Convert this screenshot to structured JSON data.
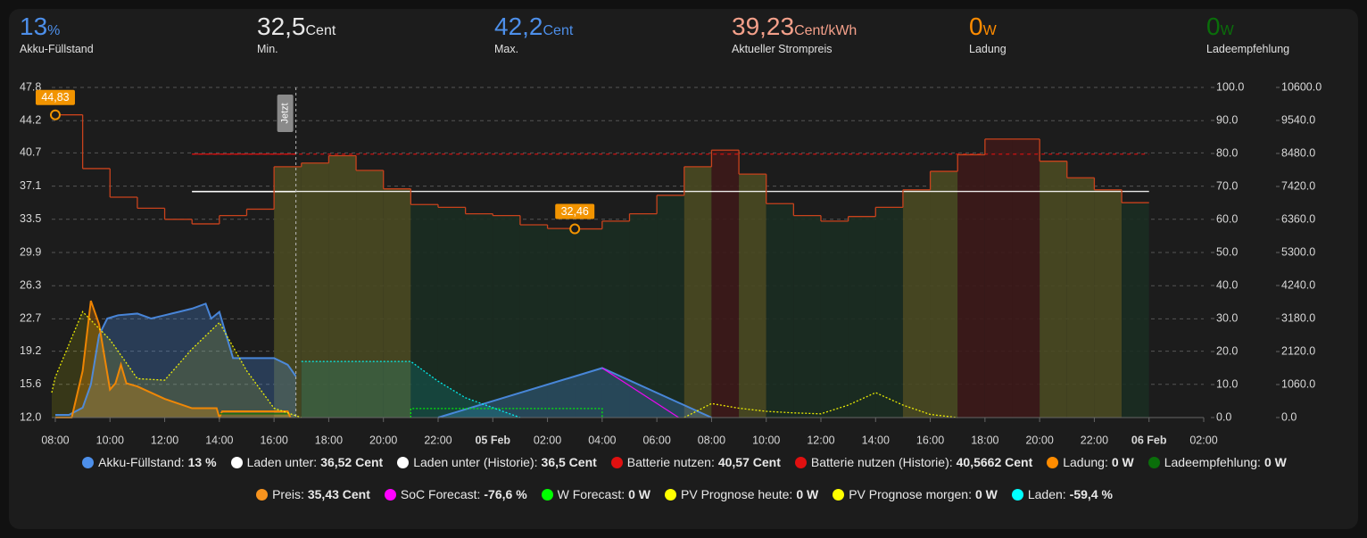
{
  "stats": [
    {
      "value": "13",
      "unit": "%",
      "label": "Akku-Füllstand",
      "color": "#4d8fea"
    },
    {
      "value": "32,5",
      "unit": "Cent",
      "label": "Min.",
      "color": "#e8e8e8"
    },
    {
      "value": "42,2",
      "unit": "Cent",
      "label": "Max.",
      "color": "#4d8fea"
    },
    {
      "value": "39,23",
      "unit": "Cent/kWh",
      "label": "Aktueller Strompreis",
      "color": "#f4a08a"
    },
    {
      "value": "0",
      "unit": "W",
      "label": "Ladung",
      "color": "#ff8c00"
    },
    {
      "value": "0",
      "unit": "W",
      "label": "Ladeempfehlung",
      "color": "#0a6e0a"
    }
  ],
  "chart_data": {
    "type": "line",
    "grid": true,
    "xlim": [
      7.87,
      50
    ],
    "xticks": [
      {
        "value": 8,
        "label": "08:00"
      },
      {
        "value": 10,
        "label": "10:00"
      },
      {
        "value": 12,
        "label": "12:00"
      },
      {
        "value": 14,
        "label": "14:00"
      },
      {
        "value": 16,
        "label": "16:00"
      },
      {
        "value": 18,
        "label": "18:00"
      },
      {
        "value": 20,
        "label": "20:00"
      },
      {
        "value": 22,
        "label": "22:00"
      },
      {
        "value": 24,
        "label": "05 Feb",
        "bold": true
      },
      {
        "value": 26,
        "label": "02:00"
      },
      {
        "value": 28,
        "label": "04:00"
      },
      {
        "value": 30,
        "label": "06:00"
      },
      {
        "value": 32,
        "label": "08:00"
      },
      {
        "value": 34,
        "label": "10:00"
      },
      {
        "value": 36,
        "label": "12:00"
      },
      {
        "value": 38,
        "label": "14:00"
      },
      {
        "value": 40,
        "label": "16:00"
      },
      {
        "value": 42,
        "label": "18:00"
      },
      {
        "value": 44,
        "label": "20:00"
      },
      {
        "value": 46,
        "label": "22:00"
      },
      {
        "value": 48,
        "label": "06 Feb",
        "bold": true
      },
      {
        "value": 50,
        "label": "02:00"
      }
    ],
    "ylim": [
      12,
      47.8
    ],
    "yticks": [
      {
        "value": 12,
        "label": "12.0"
      },
      15.6,
      19.2,
      22.7,
      26.3,
      29.9,
      33.5,
      37.1,
      40.7,
      44.2,
      47.8
    ],
    "y2lim": [
      0,
      100
    ],
    "y2ticks": [
      {
        "value": 0,
        "label": "0.0"
      },
      {
        "value": 10,
        "label": "10.0"
      },
      {
        "value": 20,
        "label": "20.0"
      },
      {
        "value": 30,
        "label": "30.0"
      },
      {
        "value": 40,
        "label": "40.0"
      },
      {
        "value": 50,
        "label": "50.0"
      },
      {
        "value": 60,
        "label": "60.0"
      },
      {
        "value": 70,
        "label": "70.0"
      },
      {
        "value": 80,
        "label": "80.0"
      },
      {
        "value": 90,
        "label": "90.0"
      },
      {
        "value": 100,
        "label": "100.0"
      }
    ],
    "y3lim": [
      0,
      10600
    ],
    "y3ticks": [
      {
        "value": 0,
        "label": "0.0"
      },
      {
        "value": 1060,
        "label": "1060.0"
      },
      {
        "value": 2120,
        "label": "2120.0"
      },
      {
        "value": 3180,
        "label": "3180.0"
      },
      {
        "value": 4240,
        "label": "4240.0"
      },
      {
        "value": 5300,
        "label": "5300.0"
      },
      {
        "value": 6360,
        "label": "6360.0"
      },
      {
        "value": 7420,
        "label": "7420.0"
      },
      {
        "value": 8480,
        "label": "8480.0"
      },
      {
        "value": 9540,
        "label": "9540.0"
      },
      {
        "value": 10600,
        "label": "10600.0"
      }
    ],
    "now": {
      "x": 16.8,
      "label": "Jetzt"
    },
    "annotations": [
      {
        "x": 8,
        "value": 44.83,
        "label": "44,83"
      },
      {
        "x": 27,
        "value": 32.46,
        "label": "32,46"
      }
    ],
    "series": [
      {
        "name": "Akku-Füllstand",
        "legend_value": "13 %",
        "color": "#4d8fea",
        "axis": "y2",
        "style": "area",
        "x": [
          8,
          8.5,
          9,
          9.3,
          9.6,
          9.9,
          10.3,
          11,
          11.5,
          12,
          12.5,
          13,
          13.5,
          13.7,
          14,
          14.5,
          15,
          16,
          16.5,
          16.8,
          17,
          22,
          28,
          32
        ],
        "values": [
          0.8,
          0.8,
          3,
          10,
          25,
          30,
          31,
          31.5,
          30,
          31,
          32,
          33,
          34.5,
          30,
          32,
          18,
          18,
          18,
          16,
          12.5,
          null,
          0,
          15,
          0
        ]
      },
      {
        "name": "Laden unter",
        "legend_value": "36,52 Cent",
        "color": "#ffffff",
        "axis": "y",
        "style": "line",
        "x": [
          13,
          48
        ],
        "values": [
          36.52,
          36.52
        ]
      },
      {
        "name": "Laden unter (Historie)",
        "legend_value": "36,5 Cent",
        "color": "#ffffff",
        "axis": "y",
        "style": "line",
        "x": [
          13,
          16.8
        ],
        "values": [
          36.5,
          36.5
        ]
      },
      {
        "name": "Batterie nutzen",
        "legend_value": "40,57 Cent",
        "color": "#e01010",
        "axis": "y",
        "style": "dashed",
        "x": [
          13,
          48
        ],
        "values": [
          40.57,
          40.57
        ]
      },
      {
        "name": "Batterie nutzen (Historie)",
        "legend_value": "40,5662 Cent",
        "color": "#e01010",
        "axis": "y",
        "style": "line",
        "x": [
          13,
          16.8
        ],
        "values": [
          40.5662,
          40.5662
        ]
      },
      {
        "name": "Ladung",
        "legend_value": "0 W",
        "color": "#ff8c00",
        "axis": "y3",
        "style": "area",
        "x": [
          8,
          8.6,
          9,
          9.3,
          9.6,
          10,
          10.2,
          10.4,
          10.6,
          11,
          12,
          13,
          13.9,
          14,
          14.1,
          16.5,
          16.6
        ],
        "values": [
          0,
          0,
          1500,
          3750,
          3000,
          900,
          1100,
          1700,
          1100,
          1000,
          600,
          300,
          300,
          0,
          200,
          200,
          0
        ]
      },
      {
        "name": "Ladeempfehlung",
        "legend_value": "0 W",
        "color": "#0a6e0a",
        "axis": "y3",
        "style": "line",
        "x": [
          14,
          16.5
        ],
        "values": [
          120,
          120
        ]
      },
      {
        "name": "Preis",
        "legend_value": "35,43 Cent",
        "color": "#f7931e",
        "stroke": "#c8421c",
        "axis": "y",
        "style": "step",
        "step_width": 1,
        "x": [
          8,
          9,
          10,
          11,
          12,
          13,
          14,
          15,
          16,
          17,
          18,
          19,
          20,
          21,
          22,
          23,
          24,
          25,
          26,
          27,
          28,
          29,
          30,
          31,
          32,
          33,
          34,
          35,
          36,
          37,
          38,
          39,
          40,
          41,
          42,
          43,
          44,
          45,
          46,
          47
        ],
        "values": [
          44.83,
          39.0,
          35.9,
          34.7,
          33.5,
          33.0,
          33.9,
          34.6,
          39.2,
          39.6,
          40.4,
          38.8,
          36.8,
          35.1,
          34.8,
          34.1,
          33.9,
          32.9,
          32.5,
          32.46,
          33.3,
          34.1,
          36.1,
          39.2,
          41.0,
          38.4,
          35.2,
          33.9,
          33.3,
          33.8,
          34.8,
          36.7,
          38.7,
          40.5,
          42.2,
          42.2,
          39.8,
          38.0,
          36.7,
          35.3
        ],
        "fill_colors": [
          null,
          null,
          null,
          null,
          null,
          null,
          null,
          null,
          "#4a4a22",
          "#4a4a22",
          "#4a4a22",
          "#4a4a22",
          "#4a4a22",
          "#1b2e22",
          "#1b2e22",
          "#1b2e22",
          "#1b2e22",
          "#1b2e22",
          "#1b2e22",
          "#1b2e22",
          "#1b2e22",
          "#1b2e22",
          "#1b2e22",
          "#4a4a22",
          "#3d1a1a",
          "#4a4a22",
          "#1b2e22",
          "#1b2e22",
          "#1b2e22",
          "#1b2e22",
          "#1b2e22",
          "#4a4a22",
          "#4a4a22",
          "#3d1a1a",
          "#3d1a1a",
          "#3d1a1a",
          "#4a4a22",
          "#4a4a22",
          "#4a4a22",
          "#1b2e22"
        ]
      },
      {
        "name": "SoC Forecast",
        "legend_value": "-76,6 %",
        "color": "#ff00ff",
        "axis": "y2",
        "style": "line",
        "x": [
          28,
          30.8
        ],
        "values": [
          15,
          0
        ]
      },
      {
        "name": "W Forecast",
        "legend_value": "0 W",
        "color": "#00ff00",
        "axis": "y3",
        "style": "dotted",
        "x": [
          21,
          21,
          28,
          28
        ],
        "values": [
          0,
          290,
          290,
          0
        ]
      },
      {
        "name": "PV Prognose heute",
        "legend_value": "0 W",
        "color": "#ffff00",
        "axis": "y3",
        "style": "dotted-area",
        "x": [
          7.87,
          8,
          9,
          10,
          11,
          12,
          13,
          14,
          15,
          16,
          17
        ],
        "values": [
          800,
          1300,
          3400,
          2500,
          1250,
          1200,
          2200,
          3050,
          1500,
          300,
          0
        ]
      },
      {
        "name": "PV Prognose morgen",
        "legend_value": "0 W",
        "color": "#ffff00",
        "axis": "y3",
        "style": "dotted",
        "x": [
          31,
          32,
          33,
          34,
          35,
          36,
          37,
          38,
          39,
          40,
          41
        ],
        "values": [
          0,
          450,
          300,
          200,
          150,
          120,
          400,
          800,
          400,
          100,
          0
        ]
      },
      {
        "name": "Laden",
        "legend_value": "-59,4 %",
        "color": "#00ffff",
        "axis": "y2",
        "style": "dotted-area",
        "x": [
          17,
          21,
          22,
          23,
          24,
          25
        ],
        "values": [
          17,
          17,
          11,
          6,
          3,
          0
        ]
      }
    ]
  }
}
